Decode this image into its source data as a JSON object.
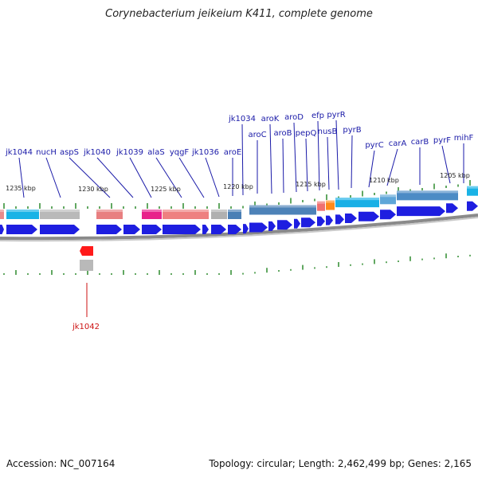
{
  "title": "Corynebacterium jeikeium K411, complete genome",
  "footer": {
    "accession": "Accession: NC_007164",
    "summary": "Topology: circular; Length: 2,462,499 bp; Genes: 2,165"
  },
  "colors": {
    "gene_label": "#1a1aa8",
    "highlight_label": "#cc1111",
    "gene_arrow": "#1e1ee0",
    "tick": "#2e8b2e"
  },
  "scale_labels": [
    "1235 kbp",
    "1230 kbp",
    "1225 kbp",
    "1220 kbp",
    "1215 kbp",
    "1210 kbp",
    "1205 kbp"
  ],
  "gene_labels": [
    "jk1044",
    "nucH",
    "aspS",
    "jk1040",
    "jk1039",
    "alaS",
    "yqgF",
    "jk1036",
    "aroE",
    "jk1034",
    "aroC",
    "aroK",
    "aroB",
    "aroD",
    "pepQ",
    "efp",
    "nusB",
    "pyrR",
    "pyrB",
    "pyrC",
    "carA",
    "carB",
    "pyrF",
    "mihF"
  ],
  "highlight_gene": "jk1042"
}
